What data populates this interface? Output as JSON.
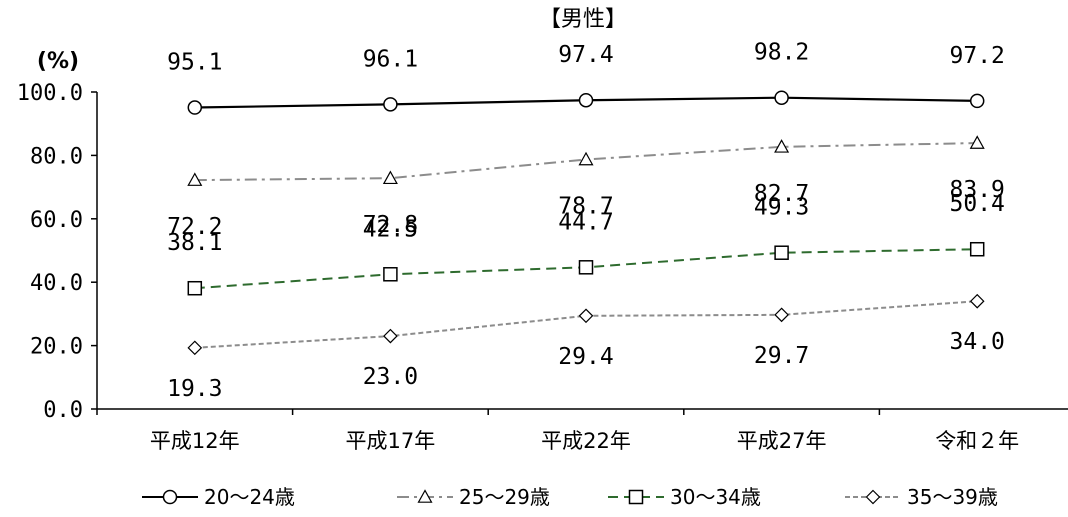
{
  "chart_data": {
    "type": "line",
    "title": "【男性】",
    "unit_label": "(%)",
    "categories": [
      "平成12年",
      "平成17年",
      "平成22年",
      "平成27年",
      "令和２年"
    ],
    "ylim": [
      0,
      100
    ],
    "yticks": [
      "0.0",
      "20.0",
      "40.0",
      "60.0",
      "80.0",
      "100.0"
    ],
    "legend_position": "bottom",
    "series": [
      {
        "name": "20～24歳",
        "values": [
          95.1,
          96.1,
          97.4,
          98.2,
          97.2
        ],
        "labels": [
          "95.1",
          "96.1",
          "97.4",
          "98.2",
          "97.2"
        ],
        "marker": "circle",
        "dash": "solid",
        "color": "#000000"
      },
      {
        "name": "25～29歳",
        "values": [
          72.2,
          72.8,
          78.7,
          82.7,
          83.9
        ],
        "labels": [
          "72.2",
          "72.8",
          "78.7",
          "82.7",
          "83.9"
        ],
        "marker": "triangle",
        "dash": "dash-dot",
        "color": "#8c8c8c"
      },
      {
        "name": "30～34歳",
        "values": [
          38.1,
          42.5,
          44.7,
          49.3,
          50.4
        ],
        "labels": [
          "38.1",
          "42.5",
          "44.7",
          "49.3",
          "50.4"
        ],
        "marker": "square",
        "dash": "dashed",
        "color": "#2e6b2e"
      },
      {
        "name": "35～39歳",
        "values": [
          19.3,
          23.0,
          29.4,
          29.7,
          34.0
        ],
        "labels": [
          "19.3",
          "23.0",
          "29.4",
          "29.7",
          "34.0"
        ],
        "marker": "diamond",
        "dash": "dotted",
        "color": "#8c8c8c"
      }
    ]
  }
}
